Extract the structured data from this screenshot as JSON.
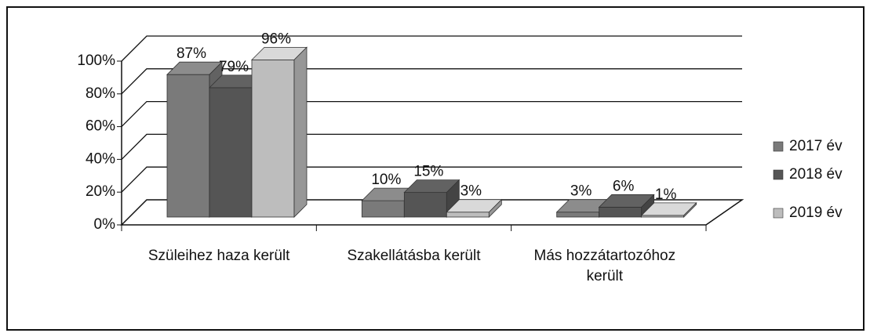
{
  "chart_data": {
    "type": "bar3d",
    "categories": [
      "Szüleihez haza került",
      "Szakellátásba került",
      "Más hozzátartozóhoz került"
    ],
    "series": [
      {
        "name": "2017 év",
        "color": "#7a7a7a",
        "values": [
          87,
          10,
          3
        ],
        "value_labels": [
          "87%",
          "10%",
          "3%"
        ]
      },
      {
        "name": "2018 év",
        "color": "#555555",
        "values": [
          79,
          15,
          6
        ],
        "value_labels": [
          "79%",
          "15%",
          "6%"
        ]
      },
      {
        "name": "2019 év",
        "color": "#bdbdbd",
        "values": [
          96,
          3,
          1
        ],
        "value_labels": [
          "96%",
          "3%",
          "1%"
        ]
      }
    ],
    "ylim": [
      0,
      100
    ],
    "yticks": [
      {
        "value": 0,
        "label": "0%"
      },
      {
        "value": 20,
        "label": "20%"
      },
      {
        "value": 40,
        "label": "40%"
      },
      {
        "value": 60,
        "label": "60%"
      },
      {
        "value": 80,
        "label": "80%"
      },
      {
        "value": 100,
        "label": "100%"
      }
    ],
    "grid": true,
    "legend": "right"
  }
}
